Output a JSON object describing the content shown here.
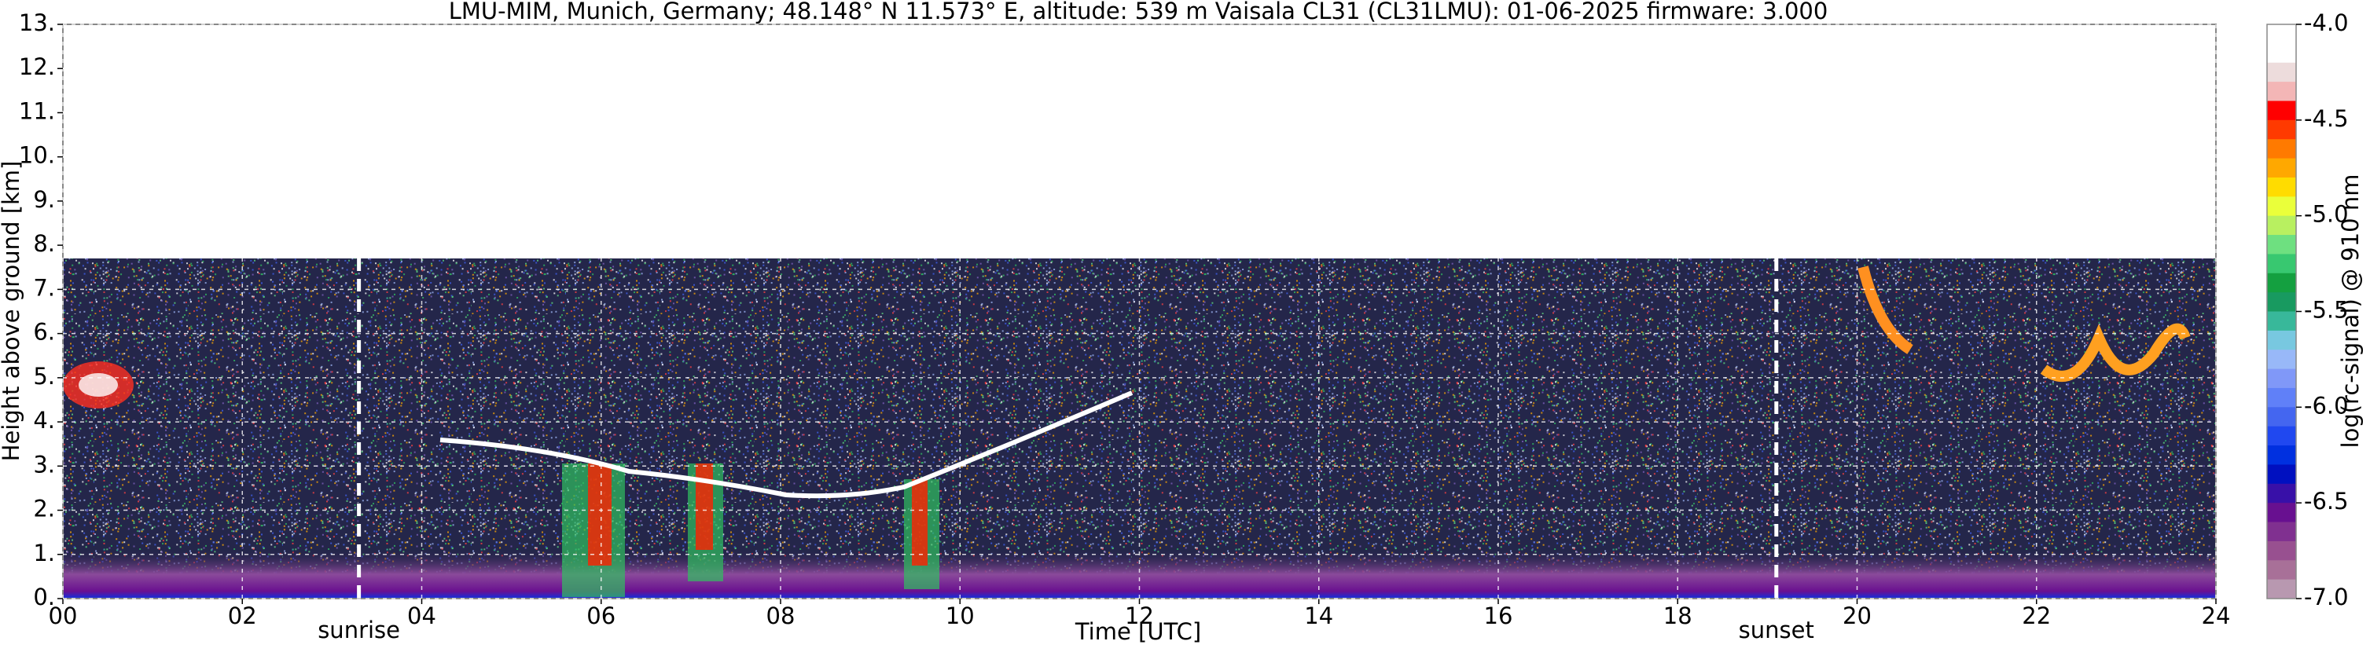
{
  "chart_data": {
    "type": "heatmap",
    "title": "LMU-MIM, Munich, Germany; 48.148° N 11.573° E, altitude: 539 m    Vaisala CL31 (CL31LMU): 01-06-2025    firmware: 3.000",
    "x_label": "Time [UTC]",
    "y_label": "Height above ground [km]",
    "xlim": [
      0,
      24
    ],
    "xticks": [
      {
        "value": 0,
        "label": "00"
      },
      {
        "value": 2,
        "label": "02"
      },
      {
        "value": 4,
        "label": "04"
      },
      {
        "value": 6,
        "label": "06"
      },
      {
        "value": 8,
        "label": "08"
      },
      10,
      12,
      14,
      16,
      18,
      20,
      22,
      24
    ],
    "ylim": [
      0,
      13
    ],
    "yticks": [
      {
        "value": 0,
        "label": "0."
      },
      {
        "value": 1,
        "label": "1."
      },
      {
        "value": 2,
        "label": "2."
      },
      {
        "value": 3,
        "label": "3."
      },
      {
        "value": 4,
        "label": "4."
      },
      {
        "value": 5,
        "label": "5."
      },
      {
        "value": 6,
        "label": "6."
      },
      {
        "value": 7,
        "label": "7."
      },
      {
        "value": 8,
        "label": "8."
      },
      {
        "value": 9,
        "label": "9."
      },
      {
        "value": 10,
        "label": "10."
      },
      {
        "value": 11,
        "label": "11."
      },
      {
        "value": 12,
        "label": "12."
      },
      {
        "value": 13,
        "label": "13."
      }
    ],
    "grid": true,
    "annotations": [
      {
        "text": "sunrise",
        "x": 3.3
      },
      {
        "text": "sunset",
        "x": 19.1
      }
    ],
    "colorbar": {
      "label": "log(rc-signal) @ 910 nm",
      "lim": [
        -4.0,
        -7.0
      ],
      "ticks": [
        {
          "value": -4.0,
          "label": "-4.0"
        },
        -4.5,
        {
          "value": -5.0,
          "label": "-5.0"
        },
        -5.5,
        {
          "value": -6.0,
          "label": "-6.0"
        },
        -6.5,
        {
          "value": -7.0,
          "label": "-7.0"
        }
      ],
      "colors": [
        "#ffffff",
        "#ffffff",
        "#eddcdc",
        "#f3b6b6",
        "#ff0000",
        "#ff3a00",
        "#ff7a00",
        "#ffa800",
        "#ffdc00",
        "#eaff3a",
        "#b8f060",
        "#6ee080",
        "#38c870",
        "#14a040",
        "#189a60",
        "#38b89a",
        "#78c8e0",
        "#98b8f8",
        "#8098f8",
        "#6080f8",
        "#4466f0",
        "#2048f0",
        "#0030e0",
        "#0010c0",
        "#3810a8",
        "#681090",
        "#803090",
        "#985090",
        "#a87098",
        "#b898b0"
      ]
    }
  }
}
